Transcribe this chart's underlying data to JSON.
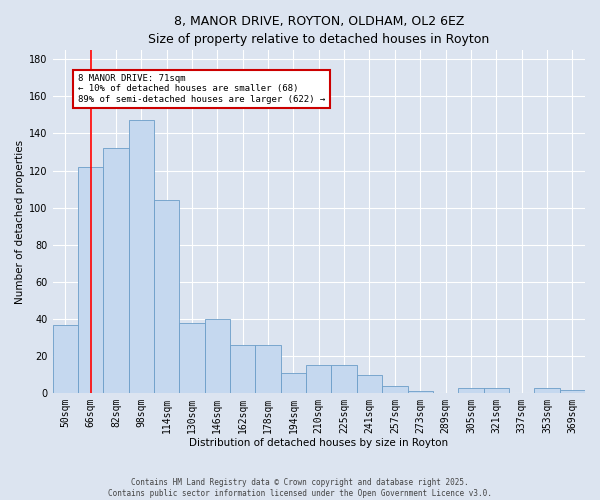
{
  "title": "8, MANOR DRIVE, ROYTON, OLDHAM, OL2 6EZ",
  "subtitle": "Size of property relative to detached houses in Royton",
  "xlabel": "Distribution of detached houses by size in Royton",
  "ylabel": "Number of detached properties",
  "categories": [
    "50sqm",
    "66sqm",
    "82sqm",
    "98sqm",
    "114sqm",
    "130sqm",
    "146sqm",
    "162sqm",
    "178sqm",
    "194sqm",
    "210sqm",
    "225sqm",
    "241sqm",
    "257sqm",
    "273sqm",
    "289sqm",
    "305sqm",
    "321sqm",
    "337sqm",
    "353sqm",
    "369sqm"
  ],
  "values": [
    37,
    122,
    132,
    147,
    104,
    38,
    40,
    26,
    26,
    11,
    15,
    15,
    10,
    4,
    1,
    0,
    3,
    3,
    0,
    3,
    2
  ],
  "bar_color": "#c5d8ef",
  "bar_edge_color": "#6b9dc8",
  "background_color": "#dce4f0",
  "grid_color": "#ffffff",
  "red_line_x": 1,
  "ylim": [
    0,
    185
  ],
  "yticks": [
    0,
    20,
    40,
    60,
    80,
    100,
    120,
    140,
    160,
    180
  ],
  "annotation_text": "8 MANOR DRIVE: 71sqm\n← 10% of detached houses are smaller (68)\n89% of semi-detached houses are larger (622) →",
  "annotation_box_facecolor": "#ffffff",
  "annotation_box_edgecolor": "#cc0000",
  "title_fontsize": 9,
  "subtitle_fontsize": 8,
  "axis_label_fontsize": 7.5,
  "tick_fontsize": 7,
  "annotation_fontsize": 6.5,
  "footer_fontsize": 5.5,
  "footer_line1": "Contains HM Land Registry data © Crown copyright and database right 2025.",
  "footer_line2": "Contains public sector information licensed under the Open Government Licence v3.0."
}
